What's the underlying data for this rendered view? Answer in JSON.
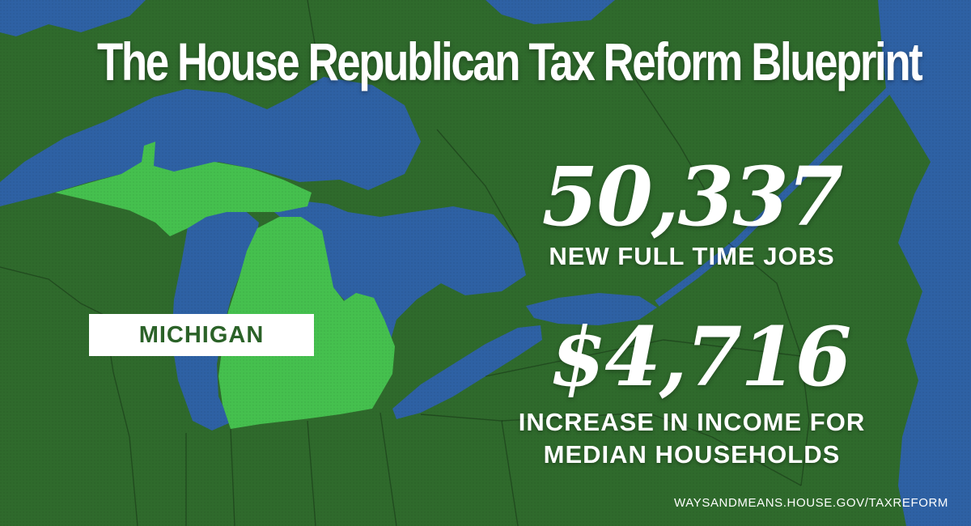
{
  "title": "The House Republican Tax Reform Blueprint",
  "state": "MICHIGAN",
  "jobs": {
    "value": "50,337",
    "label": "NEW FULL TIME JOBS"
  },
  "income": {
    "value": "$4,716",
    "label_line1": "INCREASE IN INCOME FOR",
    "label_line2": "MEDIAN HOUSEHOLDS"
  },
  "url": "WAYSANDMEANS.HOUSE.GOV/TAXREFORM",
  "colors": {
    "land": "#2f6a2c",
    "water": "#2e61a4",
    "highlight_state": "#45c04e",
    "text": "#ffffff",
    "state_label_text": "#2b6228"
  }
}
